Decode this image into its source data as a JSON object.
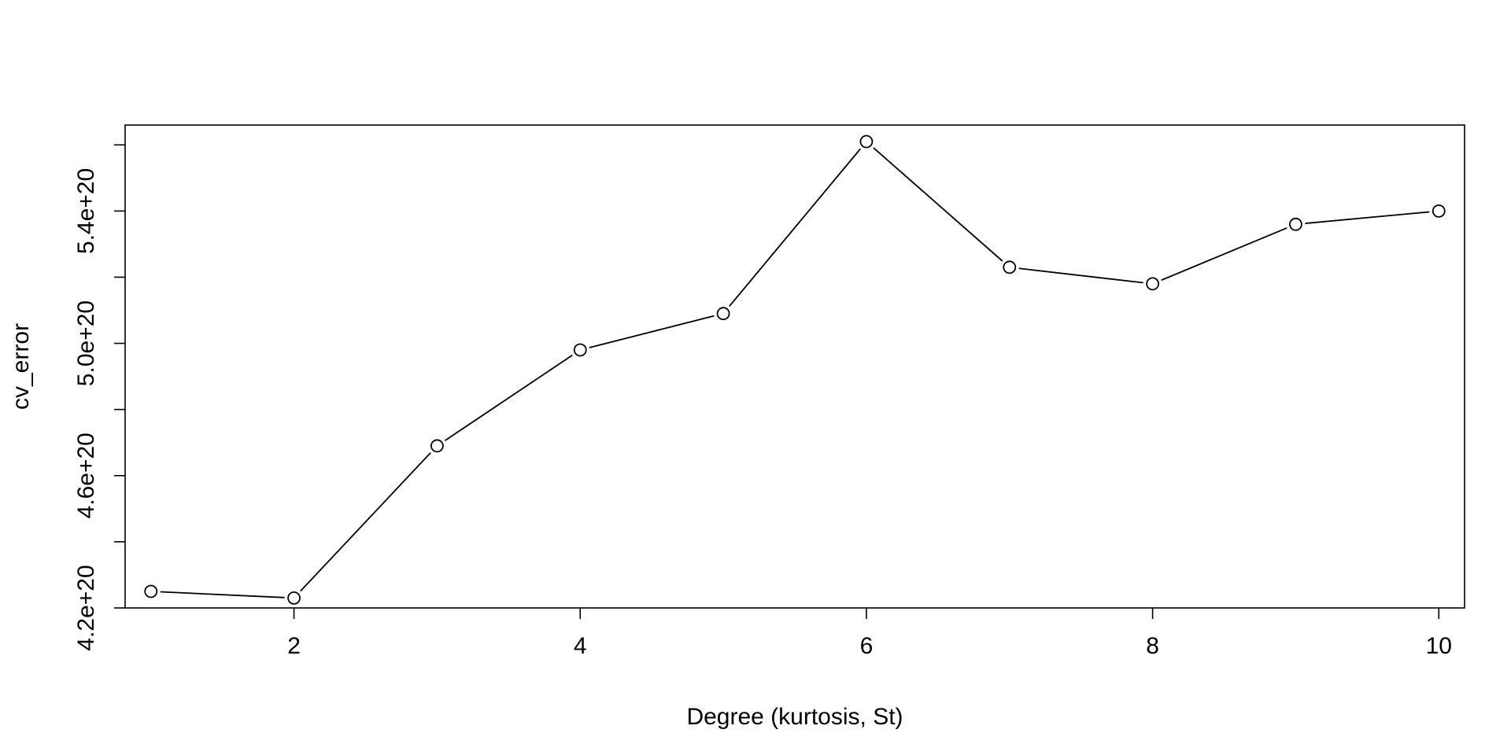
{
  "chart_data": {
    "type": "line",
    "title": "",
    "xlabel": "Degree (kurtosis, St)",
    "ylabel": "cv_error",
    "x": [
      1,
      2,
      3,
      4,
      5,
      6,
      7,
      8,
      9,
      10
    ],
    "series": [
      {
        "values": [
          4.25e+20,
          4.23e+20,
          4.69e+20,
          4.98e+20,
          5.09e+20,
          5.61e+20,
          5.23e+20,
          5.18e+20,
          5.36e+20,
          5.4e+20
        ]
      }
    ],
    "xlim": [
      0.82,
      10.18
    ],
    "ylim": [
      4.2e+20,
      5.66e+20
    ],
    "x_ticks": [
      2,
      4,
      6,
      8,
      10
    ],
    "x_tick_labels": [
      "2",
      "4",
      "6",
      "8",
      "10"
    ],
    "y_ticks": [
      4.2e+20,
      4.4e+20,
      4.6e+20,
      4.8e+20,
      5e+20,
      5.2e+20,
      5.4e+20,
      5.6e+20
    ],
    "y_tick_labels": [
      "4.2e+20",
      "",
      "4.6e+20",
      "",
      "5.0e+20",
      "",
      "5.4e+20",
      ""
    ],
    "grid": false,
    "marker": "open-circle",
    "line_color": "#000000"
  }
}
